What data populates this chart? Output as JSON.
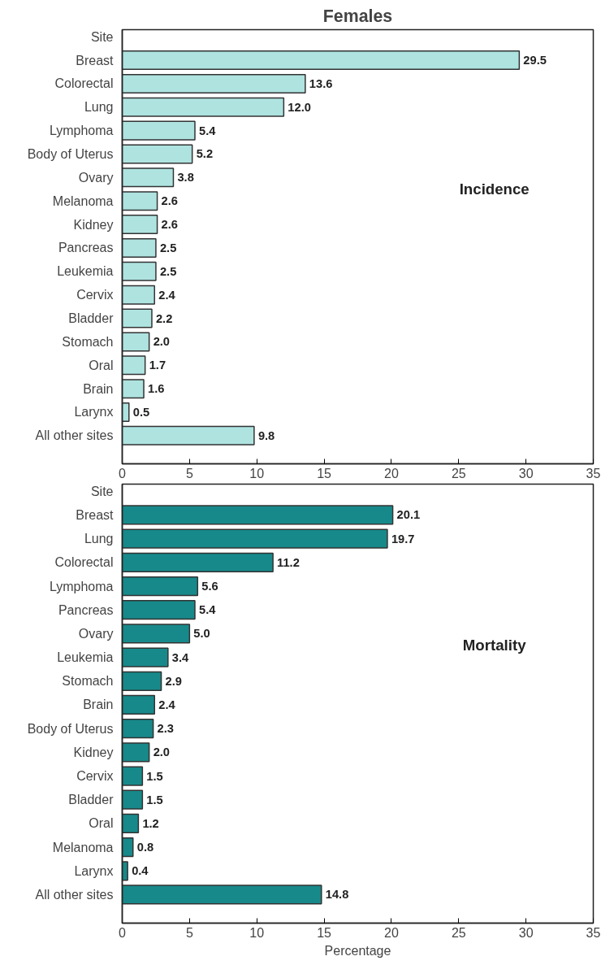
{
  "chart_data": [
    {
      "type": "bar",
      "orientation": "horizontal",
      "title": "Females",
      "ylabel": "Site",
      "annotations": [
        "Incidence"
      ],
      "categories": [
        "Breast",
        "Colorectal",
        "Lung",
        "Lymphoma",
        "Body of Uterus",
        "Ovary",
        "Melanoma",
        "Kidney",
        "Pancreas",
        "Leukemia",
        "Cervix",
        "Bladder",
        "Stomach",
        "Oral",
        "Brain",
        "Larynx",
        "All other sites"
      ],
      "values": [
        29.5,
        13.6,
        12.0,
        5.4,
        5.2,
        3.8,
        2.6,
        2.6,
        2.5,
        2.5,
        2.4,
        2.2,
        2.0,
        1.7,
        1.6,
        0.5,
        9.8
      ],
      "value_labels": [
        "29.5",
        "13.6",
        "12.0",
        "5.4",
        "5.2",
        "3.8",
        "2.6",
        "2.6",
        "2.5",
        "2.5",
        "2.4",
        "2.2",
        "2.0",
        "1.7",
        "1.6",
        "0.5",
        "9.8"
      ],
      "color": "#aee3e0",
      "xlim": [
        0,
        35
      ],
      "xticks": [
        0,
        5,
        10,
        15,
        20,
        25,
        30,
        35
      ],
      "grid": false
    },
    {
      "type": "bar",
      "orientation": "horizontal",
      "xlabel": "Percentage",
      "ylabel": "Site",
      "annotations": [
        "Mortality"
      ],
      "categories": [
        "Breast",
        "Lung",
        "Colorectal",
        "Lymphoma",
        "Pancreas",
        "Ovary",
        "Leukemia",
        "Stomach",
        "Brain",
        "Body of Uterus",
        "Kidney",
        "Cervix",
        "Bladder",
        "Oral",
        "Melanoma",
        "Larynx",
        "All other sites"
      ],
      "values": [
        20.1,
        19.7,
        11.2,
        5.6,
        5.4,
        5.0,
        3.4,
        2.9,
        2.4,
        2.3,
        2.0,
        1.5,
        1.5,
        1.2,
        0.8,
        0.4,
        14.8
      ],
      "value_labels": [
        "20.1",
        "19.7",
        "11.2",
        "5.6",
        "5.4",
        "5.0",
        "3.4",
        "2.9",
        "2.4",
        "2.3",
        "2.0",
        "1.5",
        "1.5",
        "1.2",
        "0.8",
        "0.4",
        "14.8"
      ],
      "color": "#17898a",
      "xlim": [
        0,
        35
      ],
      "xticks": [
        0,
        5,
        10,
        15,
        20,
        25,
        30,
        35
      ],
      "grid": false
    }
  ]
}
